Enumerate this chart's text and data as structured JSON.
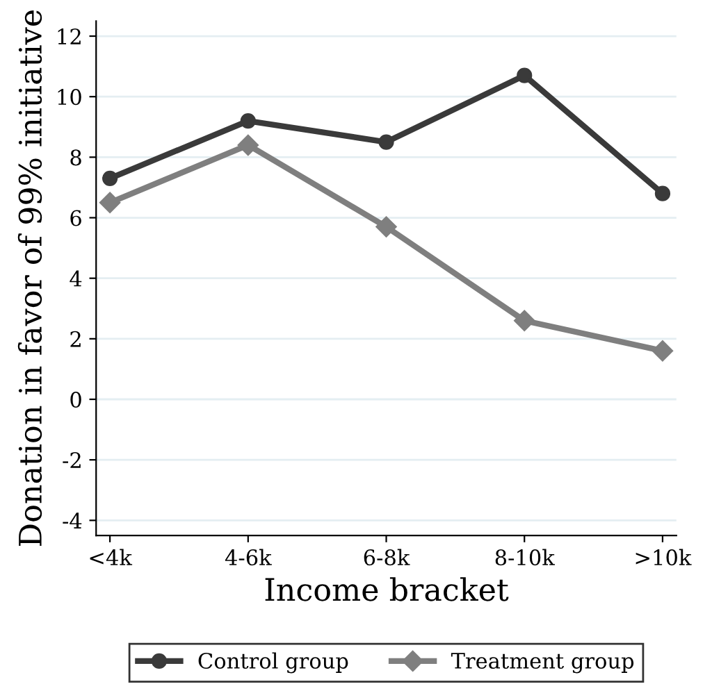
{
  "chart_data": {
    "type": "line",
    "xlabel": "Income bracket",
    "ylabel": "Donation in favor of 99% initiative",
    "categories": [
      "<4k",
      "4-6k",
      "6-8k",
      "8-10k",
      ">10k"
    ],
    "series": [
      {
        "name": "Control group",
        "color": "#3a3a3a",
        "marker": "circle",
        "values": [
          7.3,
          9.2,
          8.5,
          10.7,
          6.8
        ]
      },
      {
        "name": "Treatment group",
        "color": "#7f7f7f",
        "marker": "diamond",
        "values": [
          6.5,
          8.4,
          5.7,
          2.6,
          1.6
        ]
      }
    ],
    "ylim": [
      -4.5,
      12.5
    ],
    "yticks": [
      -4,
      -2,
      0,
      2,
      4,
      6,
      8,
      10,
      12
    ],
    "grid": "y",
    "legend": "bottom",
    "line_style": "solid"
  }
}
